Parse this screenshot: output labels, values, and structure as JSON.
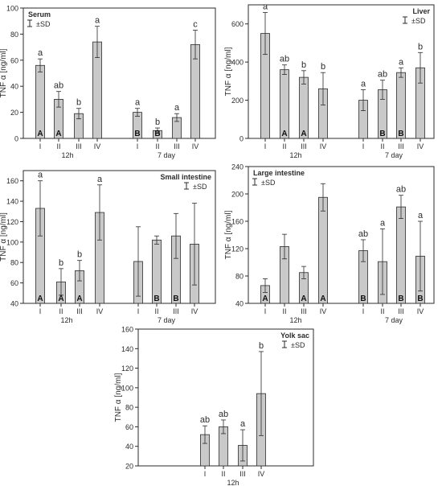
{
  "chart_data": [
    {
      "type": "bar",
      "title": "Serum",
      "legend": "±SD",
      "ylabel": "TNF α [ng/ml]",
      "ylim": [
        0,
        100
      ],
      "yticks": [
        0,
        20,
        40,
        60,
        80,
        100
      ],
      "categories": [
        "I",
        "II",
        "III",
        "IV",
        "I",
        "II",
        "III",
        "IV"
      ],
      "groups": [
        "12h",
        "7 day"
      ],
      "values": [
        56,
        30,
        19,
        74,
        20,
        6,
        16,
        72
      ],
      "sd": [
        5,
        6,
        4,
        12,
        3,
        2,
        3,
        11
      ],
      "labels_top": [
        "a",
        "ab",
        "b",
        "a",
        "a",
        "b",
        "a",
        "c"
      ],
      "labels_bottom": [
        "A",
        "A",
        "",
        "",
        "B",
        "B",
        "",
        ""
      ]
    },
    {
      "type": "bar",
      "title": "Liver",
      "legend": "±SD",
      "ylabel": "TNF α [ng/ml]",
      "ylim": [
        0,
        700
      ],
      "yticks": [
        0,
        200,
        400,
        600
      ],
      "categories": [
        "I",
        "II",
        "III",
        "IV",
        "I",
        "II",
        "III",
        "IV"
      ],
      "groups": [
        "12h",
        "7 day"
      ],
      "values": [
        550,
        360,
        320,
        260,
        200,
        255,
        345,
        370
      ],
      "sd": [
        110,
        25,
        35,
        85,
        55,
        50,
        25,
        80
      ],
      "labels_top": [
        "a",
        "ab",
        "b",
        "b",
        "a",
        "ab",
        "a",
        "b"
      ],
      "labels_bottom": [
        "",
        "A",
        "A",
        "",
        "",
        "B",
        "B",
        ""
      ]
    },
    {
      "type": "bar",
      "title": "Small intestine",
      "legend": "±SD",
      "ylabel": "TNF α [ng/ml]",
      "ylim": [
        40,
        170
      ],
      "yticks": [
        40,
        60,
        80,
        100,
        120,
        140,
        160
      ],
      "categories": [
        "I",
        "II",
        "III",
        "IV",
        "I",
        "II",
        "III",
        "IV"
      ],
      "groups": [
        "12h",
        "7 day"
      ],
      "values": [
        133,
        61,
        72,
        129,
        81,
        102,
        106,
        98
      ],
      "sd": [
        27,
        13,
        10,
        27,
        34,
        4,
        22,
        40
      ],
      "labels_top": [
        "a",
        "b",
        "b",
        "a",
        "",
        "",
        "",
        ""
      ],
      "labels_bottom": [
        "A",
        "A",
        "A",
        "",
        "",
        "B",
        "B",
        ""
      ]
    },
    {
      "type": "bar",
      "title": "Large intestine",
      "legend": "±SD",
      "ylabel": "TNF α [ng/ml]",
      "ylim": [
        40,
        240
      ],
      "yticks": [
        40,
        80,
        120,
        160,
        200,
        240
      ],
      "categories": [
        "I",
        "II",
        "III",
        "IV",
        "I",
        "II",
        "III",
        "IV"
      ],
      "groups": [
        "12h",
        "7 day"
      ],
      "values": [
        66,
        123,
        85,
        195,
        117,
        101,
        181,
        109
      ],
      "sd": [
        10,
        18,
        9,
        20,
        16,
        48,
        17,
        51
      ],
      "labels_top": [
        "",
        "",
        "",
        "",
        "ab",
        "a",
        "ab",
        "a"
      ],
      "labels_bottom": [
        "A",
        "",
        "A",
        "A",
        "B",
        "",
        "B",
        "B"
      ]
    },
    {
      "type": "bar",
      "title": "Yolk sac",
      "legend": "±SD",
      "ylabel": "TNF α [ng/ml]",
      "ylim": [
        20,
        160
      ],
      "yticks": [
        20,
        40,
        60,
        80,
        100,
        120,
        140,
        160
      ],
      "categories": [
        "I",
        "II",
        "III",
        "IV"
      ],
      "groups": [
        "12h"
      ],
      "values": [
        52,
        60,
        41,
        94
      ],
      "sd": [
        9,
        7,
        16,
        43
      ],
      "labels_top": [
        "ab",
        "ab",
        "a",
        "b"
      ],
      "labels_bottom": [
        "",
        "",
        "",
        ""
      ]
    }
  ]
}
